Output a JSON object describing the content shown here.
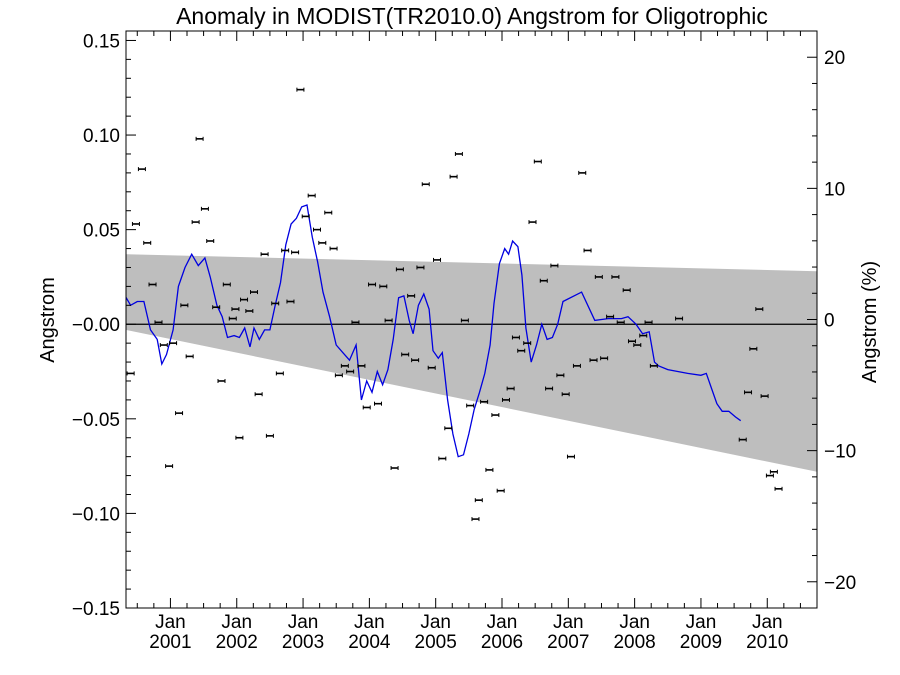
{
  "chart_data": {
    "type": "line",
    "title": "Anomaly in MODIST(TR2010.0) Angstrom for Oligotrophic",
    "ylabel": "Angstrom",
    "y2label": "Angstrom (%)",
    "ylim": [
      -0.15,
      0.155
    ],
    "y2lim": [
      -22,
      22
    ],
    "xlim": [
      2000.33,
      2010.75
    ],
    "yticks": [
      -0.15,
      -0.1,
      -0.05,
      0.0,
      0.05,
      0.1,
      0.15
    ],
    "ytick_labels": [
      "−0.15",
      "−0.10",
      "−0.05",
      "−0.00",
      "0.05",
      "0.10",
      "0.15"
    ],
    "y2ticks": [
      -20,
      -10,
      0,
      10,
      20
    ],
    "y2tick_labels": [
      "−20",
      "−10",
      "0",
      "10",
      "20"
    ],
    "xticks": [
      2001,
      2002,
      2003,
      2004,
      2005,
      2006,
      2007,
      2008,
      2009,
      2010
    ],
    "xtick_labels_top": [
      "Jan",
      "Jan",
      "Jan",
      "Jan",
      "Jan",
      "Jan",
      "Jan",
      "Jan",
      "Jan",
      "Jan"
    ],
    "xtick_labels_bottom": [
      "2001",
      "2002",
      "2003",
      "2004",
      "2005",
      "2006",
      "2007",
      "2008",
      "2009",
      "2010"
    ],
    "zero_line": 0.0,
    "trend_band": {
      "upper": [
        [
          2000.33,
          0.037
        ],
        [
          2010.75,
          0.028
        ]
      ],
      "lower": [
        [
          2000.33,
          -0.003
        ],
        [
          2010.75,
          -0.078
        ]
      ]
    },
    "points": [
      [
        2000.21,
        -0.036
      ],
      [
        2000.4,
        -0.026
      ],
      [
        2000.48,
        0.053
      ],
      [
        2000.57,
        0.082
      ],
      [
        2000.65,
        0.043
      ],
      [
        2000.73,
        0.021
      ],
      [
        2000.82,
        0.001
      ],
      [
        2000.9,
        -0.011
      ],
      [
        2000.98,
        -0.075
      ],
      [
        2001.04,
        -0.01
      ],
      [
        2001.13,
        -0.047
      ],
      [
        2001.21,
        0.01
      ],
      [
        2001.29,
        -0.017
      ],
      [
        2001.38,
        0.054
      ],
      [
        2001.44,
        0.098
      ],
      [
        2001.52,
        0.061
      ],
      [
        2001.6,
        0.044
      ],
      [
        2001.69,
        0.009
      ],
      [
        2001.77,
        -0.03
      ],
      [
        2001.85,
        0.021
      ],
      [
        2001.94,
        0.003
      ],
      [
        2001.98,
        0.008
      ],
      [
        2002.04,
        -0.06
      ],
      [
        2002.11,
        0.013
      ],
      [
        2002.19,
        0.007
      ],
      [
        2002.26,
        0.017
      ],
      [
        2002.33,
        -0.037
      ],
      [
        2002.42,
        0.037
      ],
      [
        2002.5,
        -0.059
      ],
      [
        2002.58,
        0.011
      ],
      [
        2002.65,
        -0.026
      ],
      [
        2002.73,
        0.039
      ],
      [
        2002.81,
        0.012
      ],
      [
        2002.88,
        0.038
      ],
      [
        2002.96,
        0.124
      ],
      [
        2003.04,
        0.057
      ],
      [
        2003.13,
        0.068
      ],
      [
        2003.21,
        0.05
      ],
      [
        2003.29,
        0.043
      ],
      [
        2003.38,
        0.059
      ],
      [
        2003.46,
        0.04
      ],
      [
        2003.54,
        -0.027
      ],
      [
        2003.63,
        -0.022
      ],
      [
        2003.71,
        -0.025
      ],
      [
        2003.79,
        0.001
      ],
      [
        2003.88,
        -0.022
      ],
      [
        2003.96,
        -0.044
      ],
      [
        2004.04,
        0.021
      ],
      [
        2004.13,
        -0.042
      ],
      [
        2004.21,
        0.02
      ],
      [
        2004.29,
        0.002
      ],
      [
        2004.38,
        -0.076
      ],
      [
        2004.46,
        0.029
      ],
      [
        2004.54,
        -0.016
      ],
      [
        2004.63,
        0.015
      ],
      [
        2004.69,
        -0.019
      ],
      [
        2004.77,
        0.03
      ],
      [
        2004.85,
        0.074
      ],
      [
        2004.94,
        -0.023
      ],
      [
        2005.02,
        0.034
      ],
      [
        2005.1,
        -0.071
      ],
      [
        2005.19,
        -0.055
      ],
      [
        2005.27,
        0.078
      ],
      [
        2005.35,
        0.09
      ],
      [
        2005.44,
        0.002
      ],
      [
        2005.52,
        -0.043
      ],
      [
        2005.6,
        -0.103
      ],
      [
        2005.65,
        -0.093
      ],
      [
        2005.73,
        -0.041
      ],
      [
        2005.81,
        -0.077
      ],
      [
        2005.9,
        -0.048
      ],
      [
        2005.98,
        -0.088
      ],
      [
        2006.06,
        -0.04
      ],
      [
        2006.13,
        -0.034
      ],
      [
        2006.21,
        -0.007
      ],
      [
        2006.29,
        -0.014
      ],
      [
        2006.38,
        -0.01
      ],
      [
        2006.46,
        0.054
      ],
      [
        2006.54,
        0.086
      ],
      [
        2006.63,
        0.023
      ],
      [
        2006.71,
        -0.034
      ],
      [
        2006.79,
        0.031
      ],
      [
        2006.88,
        -0.027
      ],
      [
        2006.96,
        -0.037
      ],
      [
        2007.04,
        -0.07
      ],
      [
        2007.13,
        -0.022
      ],
      [
        2007.21,
        0.08
      ],
      [
        2007.29,
        0.039
      ],
      [
        2007.38,
        -0.019
      ],
      [
        2007.46,
        0.025
      ],
      [
        2007.54,
        -0.018
      ],
      [
        2007.63,
        0.004
      ],
      [
        2007.71,
        0.025
      ],
      [
        2007.79,
        0.001
      ],
      [
        2007.88,
        0.018
      ],
      [
        2007.96,
        -0.009
      ],
      [
        2008.04,
        -0.011
      ],
      [
        2008.13,
        -0.006
      ],
      [
        2008.21,
        0.001
      ],
      [
        2008.29,
        -0.022
      ],
      [
        2008.67,
        0.003
      ],
      [
        2009.63,
        -0.061
      ],
      [
        2009.71,
        -0.036
      ],
      [
        2009.79,
        -0.013
      ],
      [
        2009.88,
        0.008
      ],
      [
        2009.96,
        -0.038
      ],
      [
        2010.04,
        -0.08
      ],
      [
        2010.1,
        -0.078
      ],
      [
        2010.17,
        -0.087
      ]
    ],
    "series": [
      {
        "color": "#0000e0",
        "points": [
          [
            2000.0,
            0.004
          ],
          [
            2000.1,
            0.013
          ],
          [
            2000.2,
            0.014
          ],
          [
            2000.3,
            0.016
          ],
          [
            2000.4,
            0.01
          ],
          [
            2000.5,
            0.012
          ],
          [
            2000.6,
            0.012
          ],
          [
            2000.7,
            -0.003
          ],
          [
            2000.8,
            -0.008
          ],
          [
            2000.87,
            -0.021
          ],
          [
            2000.94,
            -0.016
          ],
          [
            2001.04,
            -0.003
          ],
          [
            2001.12,
            0.02
          ],
          [
            2001.22,
            0.03
          ],
          [
            2001.32,
            0.037
          ],
          [
            2001.42,
            0.031
          ],
          [
            2001.52,
            0.035
          ],
          [
            2001.6,
            0.025
          ],
          [
            2001.7,
            0.01
          ],
          [
            2001.78,
            0.004
          ],
          [
            2001.86,
            -0.007
          ],
          [
            2001.96,
            -0.006
          ],
          [
            2002.04,
            -0.007
          ],
          [
            2002.12,
            -0.002
          ],
          [
            2002.2,
            -0.012
          ],
          [
            2002.26,
            -0.002
          ],
          [
            2002.34,
            -0.008
          ],
          [
            2002.42,
            -0.003
          ],
          [
            2002.5,
            -0.003
          ],
          [
            2002.58,
            0.01
          ],
          [
            2002.66,
            0.022
          ],
          [
            2002.74,
            0.042
          ],
          [
            2002.82,
            0.053
          ],
          [
            2002.9,
            0.056
          ],
          [
            2002.98,
            0.062
          ],
          [
            2003.06,
            0.063
          ],
          [
            2003.14,
            0.046
          ],
          [
            2003.22,
            0.033
          ],
          [
            2003.3,
            0.017
          ],
          [
            2003.4,
            0.004
          ],
          [
            2003.5,
            -0.011
          ],
          [
            2003.6,
            -0.015
          ],
          [
            2003.7,
            -0.019
          ],
          [
            2003.8,
            -0.011
          ],
          [
            2003.88,
            -0.04
          ],
          [
            2003.96,
            -0.03
          ],
          [
            2004.04,
            -0.036
          ],
          [
            2004.12,
            -0.025
          ],
          [
            2004.2,
            -0.032
          ],
          [
            2004.28,
            -0.024
          ],
          [
            2004.36,
            -0.008
          ],
          [
            2004.44,
            0.014
          ],
          [
            2004.52,
            0.015
          ],
          [
            2004.6,
            0.002
          ],
          [
            2004.66,
            -0.005
          ],
          [
            2004.74,
            0.01
          ],
          [
            2004.82,
            0.016
          ],
          [
            2004.9,
            0.008
          ],
          [
            2004.96,
            -0.014
          ],
          [
            2005.04,
            -0.018
          ],
          [
            2005.1,
            -0.015
          ],
          [
            2005.18,
            -0.04
          ],
          [
            2005.26,
            -0.058
          ],
          [
            2005.34,
            -0.07
          ],
          [
            2005.42,
            -0.069
          ],
          [
            2005.5,
            -0.058
          ],
          [
            2005.58,
            -0.045
          ],
          [
            2005.66,
            -0.036
          ],
          [
            2005.74,
            -0.026
          ],
          [
            2005.82,
            -0.011
          ],
          [
            2005.88,
            0.011
          ],
          [
            2005.96,
            0.032
          ],
          [
            2006.04,
            0.04
          ],
          [
            2006.1,
            0.037
          ],
          [
            2006.16,
            0.044
          ],
          [
            2006.24,
            0.041
          ],
          [
            2006.3,
            0.026
          ],
          [
            2006.36,
            -0.002
          ],
          [
            2006.44,
            -0.02
          ],
          [
            2006.52,
            -0.011
          ],
          [
            2006.6,
            0.0
          ],
          [
            2006.68,
            -0.008
          ],
          [
            2006.76,
            -0.007
          ],
          [
            2006.84,
            0.0
          ],
          [
            2006.92,
            0.012
          ],
          [
            2007.2,
            0.017
          ],
          [
            2007.4,
            0.002
          ],
          [
            2007.6,
            0.003
          ],
          [
            2007.8,
            0.003
          ],
          [
            2007.9,
            0.004
          ],
          [
            2008.02,
            0.0
          ],
          [
            2008.12,
            -0.005
          ],
          [
            2008.22,
            -0.004
          ],
          [
            2008.3,
            -0.02
          ],
          [
            2008.36,
            -0.022
          ],
          [
            2008.5,
            -0.024
          ],
          [
            2008.8,
            -0.026
          ],
          [
            2009.0,
            -0.027
          ],
          [
            2009.08,
            -0.026
          ],
          [
            2009.16,
            -0.034
          ],
          [
            2009.24,
            -0.042
          ],
          [
            2009.32,
            -0.046
          ],
          [
            2009.42,
            -0.046
          ],
          [
            2009.52,
            -0.049
          ],
          [
            2009.6,
            -0.051
          ]
        ]
      }
    ]
  }
}
